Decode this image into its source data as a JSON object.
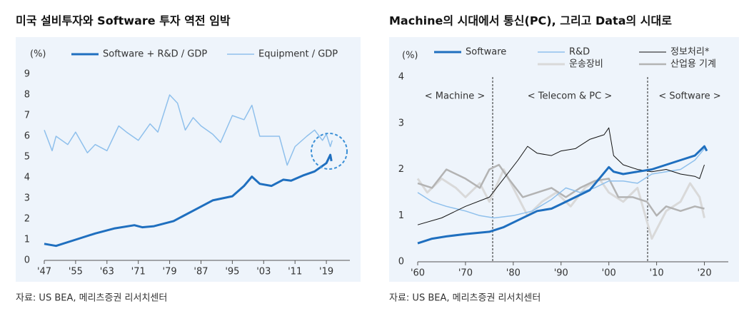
{
  "chart_data": [
    {
      "type": "line",
      "title": "미국 설비투자와 Software 투자 역전 임박",
      "ylabel": "(%)",
      "source": "자료: US BEA, 메리츠증권 리서치센터",
      "xlim": [
        1947,
        2025
      ],
      "ylim": [
        0,
        9
      ],
      "yticks": [
        0,
        1,
        2,
        3,
        4,
        5,
        6,
        7,
        8,
        9
      ],
      "xticks": [
        {
          "value": 1947,
          "label": "'47"
        },
        {
          "value": 1955,
          "label": "'55"
        },
        {
          "value": 1963,
          "label": "'63"
        },
        {
          "value": 1971,
          "label": "'71"
        },
        {
          "value": 1979,
          "label": "'79"
        },
        {
          "value": 1987,
          "label": "'87"
        },
        {
          "value": 1995,
          "label": "'95"
        },
        {
          "value": 2003,
          "label": "'03"
        },
        {
          "value": 2011,
          "label": "'11"
        },
        {
          "value": 2019,
          "label": "'19"
        }
      ],
      "series": [
        {
          "name": "Software + R&D / GDP",
          "color": "#1f6fbf",
          "width": 3,
          "x": [
            1947,
            1950,
            1955,
            1960,
            1965,
            1970,
            1972,
            1975,
            1980,
            1985,
            1990,
            1995,
            1998,
            2000,
            2002,
            2005,
            2008,
            2010,
            2013,
            2016,
            2019,
            2020,
            2020.3
          ],
          "values": [
            0.8,
            0.7,
            1.0,
            1.3,
            1.55,
            1.7,
            1.6,
            1.65,
            1.9,
            2.4,
            2.9,
            3.1,
            3.6,
            4.05,
            3.7,
            3.6,
            3.9,
            3.85,
            4.1,
            4.3,
            4.7,
            5.1,
            4.8
          ]
        },
        {
          "name": "Equipment / GDP",
          "color": "#8fc0ec",
          "width": 1.5,
          "x": [
            1947,
            1949,
            1950,
            1953,
            1955,
            1958,
            1960,
            1963,
            1966,
            1968,
            1971,
            1974,
            1976,
            1979,
            1981,
            1983,
            1985,
            1987,
            1990,
            1992,
            1995,
            1998,
            2000,
            2002,
            2005,
            2007,
            2009,
            2011,
            2014,
            2016,
            2018,
            2019,
            2020,
            2020.5
          ],
          "values": [
            6.3,
            5.3,
            6.0,
            5.6,
            6.2,
            5.2,
            5.6,
            5.3,
            6.5,
            6.2,
            5.8,
            6.6,
            6.2,
            8.0,
            7.6,
            6.3,
            6.9,
            6.5,
            6.1,
            5.7,
            7.0,
            6.8,
            7.5,
            6.0,
            6.0,
            6.0,
            4.6,
            5.5,
            6.0,
            6.3,
            5.8,
            6.1,
            5.5,
            5.8
          ]
        }
      ]
    },
    {
      "type": "line",
      "title": "Machine의 시대에서 통신(PC), 그리고 Data의 시대로",
      "ylabel": "(%)",
      "source": "자료: US BEA, 메리츠증권 리서치센터",
      "annotations": [
        "< Machine >",
        "< Telecom &  PC >",
        "< Software >"
      ],
      "xlim": [
        1960,
        2025
      ],
      "ylim": [
        0,
        4
      ],
      "yticks": [
        0,
        1,
        2,
        3,
        4
      ],
      "xticks": [
        {
          "value": 1960,
          "label": "'60"
        },
        {
          "value": 1970,
          "label": "'70"
        },
        {
          "value": 1980,
          "label": "'80"
        },
        {
          "value": 1990,
          "label": "'90"
        },
        {
          "value": 2000,
          "label": "'00"
        },
        {
          "value": 2010,
          "label": "'10"
        },
        {
          "value": 2020,
          "label": "'20"
        }
      ],
      "series": [
        {
          "name": "운송장비",
          "color": "#d9d9d9",
          "width": 3,
          "x": [
            1960,
            1962,
            1965,
            1968,
            1970,
            1973,
            1975,
            1978,
            1981,
            1983,
            1986,
            1989,
            1992,
            1995,
            1998,
            2000,
            2003,
            2006,
            2009,
            2012,
            2015,
            2017,
            2019,
            2020
          ],
          "values": [
            1.8,
            1.5,
            1.8,
            1.6,
            1.4,
            1.7,
            1.3,
            2.0,
            1.4,
            1.0,
            1.3,
            1.5,
            1.2,
            1.6,
            1.8,
            1.5,
            1.3,
            1.6,
            0.5,
            1.1,
            1.3,
            1.7,
            1.4,
            0.95
          ]
        },
        {
          "name": "산업용 기계",
          "color": "#b3b3b3",
          "width": 2.5,
          "x": [
            1960,
            1963,
            1966,
            1970,
            1973,
            1975,
            1977,
            1979,
            1982,
            1985,
            1988,
            1991,
            1994,
            1997,
            2000,
            2002,
            2005,
            2008,
            2010,
            2012,
            2015,
            2018,
            2020
          ],
          "values": [
            1.7,
            1.6,
            2.0,
            1.8,
            1.6,
            2.0,
            2.1,
            1.8,
            1.4,
            1.5,
            1.6,
            1.4,
            1.6,
            1.75,
            1.8,
            1.4,
            1.4,
            1.3,
            1.0,
            1.2,
            1.1,
            1.2,
            1.15
          ]
        },
        {
          "name": "R&D",
          "color": "#8fc0ec",
          "width": 1.5,
          "x": [
            1960,
            1963,
            1966,
            1970,
            1973,
            1976,
            1980,
            1984,
            1988,
            1991,
            1994,
            1997,
            2000,
            2003,
            2006,
            2009,
            2012,
            2015,
            2018,
            2020
          ],
          "values": [
            1.5,
            1.3,
            1.2,
            1.1,
            1.0,
            0.95,
            1.0,
            1.1,
            1.35,
            1.6,
            1.5,
            1.6,
            1.75,
            1.75,
            1.7,
            1.9,
            1.95,
            2.0,
            2.2,
            2.45
          ]
        },
        {
          "name": "정보처리*",
          "color": "#111111",
          "width": 1,
          "x": [
            1960,
            1965,
            1970,
            1975,
            1978,
            1981,
            1983,
            1985,
            1988,
            1990,
            1993,
            1996,
            1999,
            2000,
            2001,
            2003,
            2006,
            2009,
            2012,
            2015,
            2018,
            2019,
            2020
          ],
          "values": [
            0.8,
            0.95,
            1.2,
            1.4,
            1.8,
            2.2,
            2.5,
            2.35,
            2.3,
            2.4,
            2.45,
            2.65,
            2.75,
            2.9,
            2.3,
            2.1,
            2.0,
            1.95,
            2.0,
            1.9,
            1.85,
            1.8,
            2.1
          ]
        },
        {
          "name": "Software",
          "color": "#1f6fbf",
          "width": 3,
          "x": [
            1960,
            1963,
            1966,
            1970,
            1975,
            1978,
            1981,
            1985,
            1988,
            1990,
            1993,
            1996,
            1998,
            2000,
            2001,
            2003,
            2006,
            2009,
            2012,
            2015,
            2018,
            2020,
            2020.5
          ],
          "values": [
            0.4,
            0.5,
            0.55,
            0.6,
            0.65,
            0.75,
            0.9,
            1.1,
            1.15,
            1.25,
            1.4,
            1.55,
            1.8,
            2.05,
            1.95,
            1.9,
            1.95,
            2.0,
            2.1,
            2.2,
            2.3,
            2.5,
            2.4
          ]
        }
      ]
    }
  ]
}
